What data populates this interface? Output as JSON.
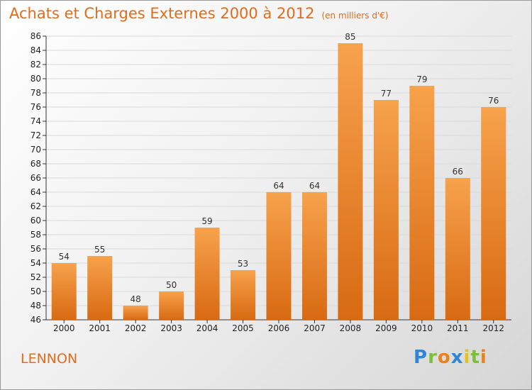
{
  "title": "Achats et Charges Externes 2000 à 2012",
  "unit": "(en milliers d'€)",
  "commune": "LENNON",
  "logo": {
    "text": "Proxiti",
    "letters": [
      {
        "ch": "P",
        "color": "#2e86d6"
      },
      {
        "ch": "r",
        "color": "#7cbf3a"
      },
      {
        "ch": "o",
        "color": "#e8831f"
      },
      {
        "ch": "x",
        "color": "#2e86d6"
      },
      {
        "ch": "i",
        "color": "#e6c21f"
      },
      {
        "ch": "t",
        "color": "#7cbf3a"
      },
      {
        "ch": "i",
        "color": "#e8831f"
      }
    ]
  },
  "colors": {
    "bar_light": "#f7a24c",
    "bar_dark": "#d86a12",
    "text_accent": "#e06c1c"
  },
  "chart_data": {
    "type": "bar",
    "title": "Achats et Charges Externes 2000 à 2012",
    "subtitle": "(en milliers d'€)",
    "categories": [
      "2000",
      "2001",
      "2002",
      "2003",
      "2004",
      "2005",
      "2006",
      "2007",
      "2008",
      "2009",
      "2010",
      "2011",
      "2012"
    ],
    "values": [
      54,
      55,
      48,
      50,
      59,
      53,
      64,
      64,
      85,
      77,
      79,
      66,
      76
    ],
    "ylim": [
      46,
      86
    ],
    "ytick_step": 2,
    "grid": true,
    "xlabel": "",
    "ylabel": ""
  }
}
